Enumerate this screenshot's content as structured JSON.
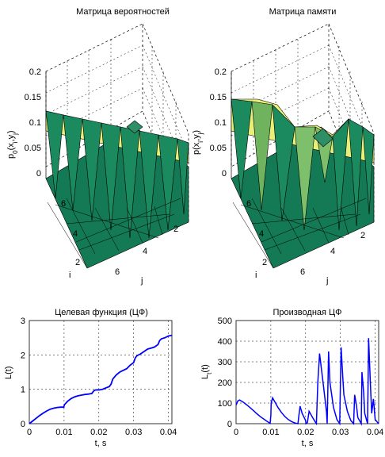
{
  "chart_data": [
    {
      "type": "surface3d",
      "title": "Матрица вероятностей",
      "zlabel": "p0(xi,yj)",
      "zlabel_parts": {
        "base": "p",
        "sub0": "0",
        "open": "(x",
        "sub1": "i",
        "comma": ",y",
        "sub2": "j",
        "close": ")"
      },
      "xlabel": "i",
      "ylabel": "j",
      "zlim": [
        0,
        0.2
      ],
      "z_ticks": [
        "0.2",
        "0.15",
        "0.1",
        "0.05",
        "0"
      ],
      "i_ticks": [
        "6",
        "4",
        "2"
      ],
      "j_ticks": [
        "6",
        "4",
        "2"
      ],
      "colors": {
        "top": "#e8f07a",
        "mid": "#2e9d6a",
        "dark": "#137a55"
      }
    },
    {
      "type": "surface3d",
      "title": "Матрица памяти",
      "zlabel": "p(xi,yj)",
      "zlabel_parts": {
        "base": "p",
        "open": "(x",
        "sub1": "i",
        "comma": ",y",
        "sub2": "j",
        "close": ")"
      },
      "xlabel": "i",
      "ylabel": "j",
      "zlim": [
        0,
        0.2
      ],
      "z_ticks": [
        "0.2",
        "0.15",
        "0.1",
        "0.05",
        "0"
      ],
      "i_ticks": [
        "6",
        "4",
        "2"
      ],
      "j_ticks": [
        "6",
        "4",
        "2"
      ],
      "colors": {
        "top": "#e8f07a",
        "mid": "#7dbf6a",
        "dark": "#137a55"
      }
    },
    {
      "type": "line",
      "title": "Целевая функция (ЦФ)",
      "ylabel": "L(t)",
      "xlabel": "t, s",
      "xlim": [
        0,
        0.041
      ],
      "ylim": [
        0,
        3
      ],
      "x_ticks": [
        0,
        0.01,
        0.02,
        0.03,
        0.04
      ],
      "x_tick_labels": [
        "0",
        "0.01",
        "0.02",
        "0.03",
        "0.04"
      ],
      "y_ticks": [
        0,
        1,
        2,
        3
      ],
      "y_tick_labels": [
        "0",
        "1",
        "2",
        "3"
      ],
      "grid": true,
      "color": "#0000ff",
      "series": [
        {
          "x": [
            0,
            0.001,
            0.002,
            0.003,
            0.004,
            0.005,
            0.006,
            0.007,
            0.008,
            0.009,
            0.0099,
            0.0101,
            0.011,
            0.012,
            0.013,
            0.014,
            0.015,
            0.016,
            0.017,
            0.018,
            0.0185,
            0.019,
            0.02,
            0.021,
            0.022,
            0.023,
            0.0235,
            0.024,
            0.025,
            0.026,
            0.027,
            0.028,
            0.029,
            0.03,
            0.0305,
            0.031,
            0.032,
            0.033,
            0.034,
            0.035,
            0.036,
            0.037,
            0.0375,
            0.038,
            0.039,
            0.04,
            0.041
          ],
          "y": [
            0,
            0.08,
            0.16,
            0.24,
            0.31,
            0.37,
            0.42,
            0.45,
            0.47,
            0.48,
            0.48,
            0.55,
            0.65,
            0.73,
            0.78,
            0.81,
            0.83,
            0.85,
            0.86,
            0.88,
            0.95,
            0.98,
            0.98,
            1.0,
            1.04,
            1.08,
            1.15,
            1.3,
            1.42,
            1.5,
            1.55,
            1.6,
            1.7,
            1.78,
            1.92,
            1.98,
            2.03,
            2.1,
            2.17,
            2.2,
            2.23,
            2.3,
            2.42,
            2.47,
            2.5,
            2.55,
            2.57
          ]
        }
      ]
    },
    {
      "type": "line",
      "title": "Производная ЦФ",
      "ylabel": "Lt(t)",
      "ylabel_parts": {
        "base": "L",
        "sub": "t",
        "rest": "(t)"
      },
      "xlabel": "t, s",
      "xlim": [
        0,
        0.041
      ],
      "ylim": [
        0,
        500
      ],
      "x_ticks": [
        0,
        0.01,
        0.02,
        0.03,
        0.04
      ],
      "x_tick_labels": [
        "0",
        "0.01",
        "0.02",
        "0.03",
        "0.04"
      ],
      "y_ticks": [
        0,
        100,
        200,
        300,
        400,
        500
      ],
      "y_tick_labels": [
        "0",
        "100",
        "200",
        "300",
        "400",
        "500"
      ],
      "grid": true,
      "color": "#0000ff",
      "series": [
        {
          "x": [
            0,
            0.0005,
            0.001,
            0.002,
            0.003,
            0.004,
            0.005,
            0.006,
            0.007,
            0.008,
            0.009,
            0.0098,
            0.01,
            0.0101,
            0.0105,
            0.011,
            0.012,
            0.013,
            0.014,
            0.015,
            0.016,
            0.017,
            0.0178,
            0.018,
            0.0184,
            0.019,
            0.02,
            0.0201,
            0.0205,
            0.021,
            0.022,
            0.0229,
            0.0231,
            0.0235,
            0.024,
            0.025,
            0.026,
            0.0262,
            0.0266,
            0.027,
            0.028,
            0.029,
            0.0298,
            0.0302,
            0.0307,
            0.031,
            0.032,
            0.033,
            0.0338,
            0.0341,
            0.0346,
            0.035,
            0.036,
            0.0362,
            0.0367,
            0.037,
            0.0378,
            0.0381,
            0.0386,
            0.039,
            0.0395,
            0.04,
            0.041
          ],
          "y": [
            90,
            110,
            115,
            105,
            92,
            78,
            63,
            48,
            34,
            22,
            10,
            2,
            40,
            100,
            125,
            110,
            80,
            55,
            35,
            20,
            10,
            3,
            0,
            30,
            85,
            50,
            15,
            0,
            5,
            60,
            30,
            5,
            0,
            200,
            340,
            200,
            60,
            0,
            350,
            200,
            80,
            20,
            0,
            370,
            220,
            140,
            60,
            15,
            0,
            140,
            90,
            30,
            0,
            250,
            150,
            50,
            0,
            415,
            200,
            50,
            120,
            20,
            0
          ]
        }
      ]
    }
  ]
}
